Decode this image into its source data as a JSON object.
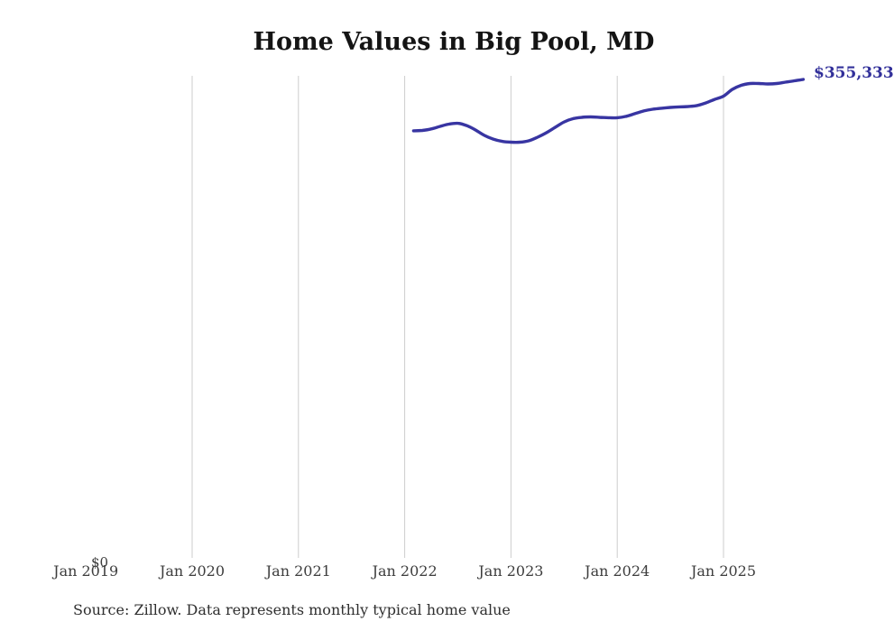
{
  "chart_data": {
    "type": "line",
    "title": "Home Values in Big Pool, MD",
    "source_note": "Source: Zillow. Data represents monthly typical home value",
    "xlabel": "",
    "ylabel": "",
    "ylim": [
      0,
      380000
    ],
    "x_range": [
      "2022-02",
      "2025-10"
    ],
    "grid": "vertical-yearly-gridlines",
    "legend_position": "none",
    "y_zero_label": "$0",
    "end_label": "$355,333",
    "end_value": 355333,
    "line_color": "#3835a2",
    "end_label_color": "#32309a",
    "gridline_color": "#cdcdcd",
    "axis_text_color": "#3d3d3d",
    "x_ticks": [
      {
        "label": "Jan 2019",
        "t": 2019,
        "gridline": false
      },
      {
        "label": "Jan 2020",
        "t": 2020,
        "gridline": true
      },
      {
        "label": "Jan 2021",
        "t": 2021,
        "gridline": true
      },
      {
        "label": "Jan 2022",
        "t": 2022,
        "gridline": true
      },
      {
        "label": "Jan 2023",
        "t": 2023,
        "gridline": true
      },
      {
        "label": "Jan 2024",
        "t": 2024,
        "gridline": true
      },
      {
        "label": "Jan 2025",
        "t": 2025,
        "gridline": true
      }
    ],
    "series": [
      {
        "name": "Monthly typical home value",
        "x": [
          "2022-02",
          "2022-03",
          "2022-04",
          "2022-05",
          "2022-06",
          "2022-07",
          "2022-08",
          "2022-09",
          "2022-10",
          "2022-11",
          "2022-12",
          "2023-01",
          "2023-02",
          "2023-03",
          "2023-04",
          "2023-05",
          "2023-06",
          "2023-07",
          "2023-08",
          "2023-09",
          "2023-10",
          "2023-11",
          "2023-12",
          "2024-01",
          "2024-02",
          "2024-03",
          "2024-04",
          "2024-05",
          "2024-06",
          "2024-07",
          "2024-08",
          "2024-09",
          "2024-10",
          "2024-11",
          "2024-12",
          "2025-01",
          "2025-02",
          "2025-03",
          "2025-04",
          "2025-05",
          "2025-06",
          "2025-07",
          "2025-08",
          "2025-09",
          "2025-10"
        ],
        "values": [
          317300,
          317600,
          318700,
          320600,
          322300,
          322900,
          321200,
          317900,
          313900,
          311200,
          309500,
          308900,
          308900,
          309900,
          312600,
          315900,
          319900,
          323900,
          326300,
          327300,
          327600,
          327300,
          327000,
          327000,
          328000,
          330000,
          332000,
          333300,
          334000,
          334600,
          335000,
          335300,
          336000,
          338000,
          340600,
          343000,
          348000,
          351000,
          352300,
          352300,
          352000,
          352300,
          353300,
          354300,
          355333
        ]
      }
    ]
  }
}
